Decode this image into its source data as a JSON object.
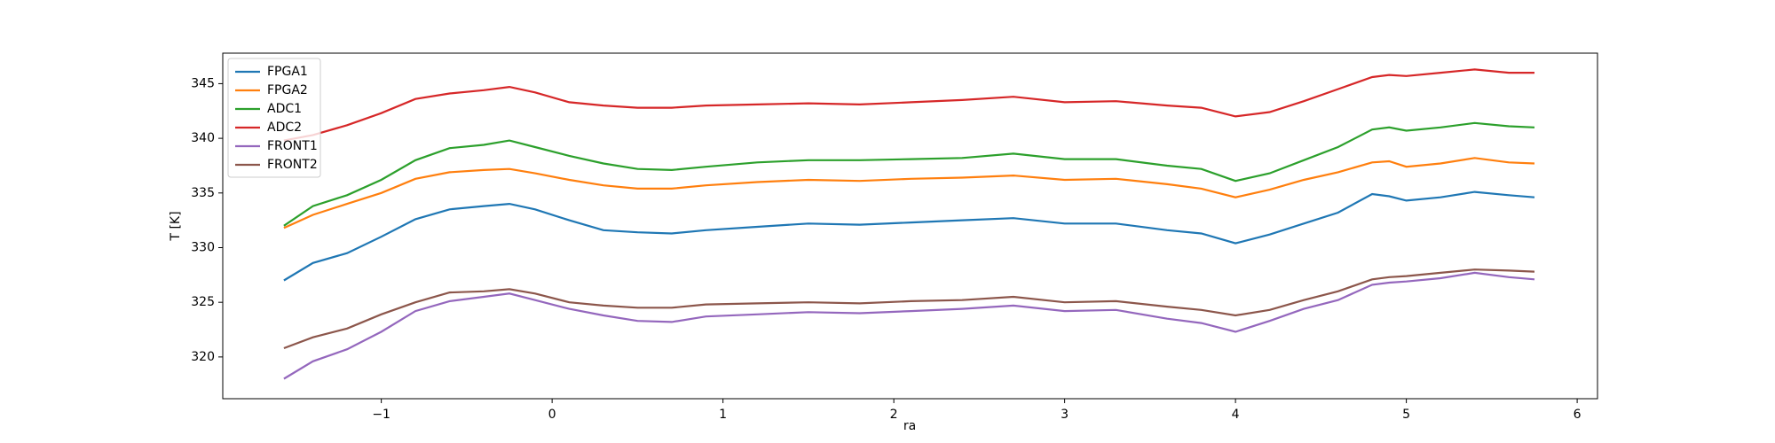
{
  "chart_data": {
    "type": "line",
    "xlabel": "ra",
    "ylabel": "T [K]",
    "x": [
      -1.57,
      -1.4,
      -1.2,
      -1.0,
      -0.8,
      -0.6,
      -0.4,
      -0.25,
      -0.1,
      0.1,
      0.3,
      0.5,
      0.7,
      0.9,
      1.2,
      1.5,
      1.8,
      2.1,
      2.4,
      2.7,
      3.0,
      3.3,
      3.6,
      3.8,
      4.0,
      4.2,
      4.4,
      4.6,
      4.8,
      4.9,
      5.0,
      5.2,
      5.4,
      5.6,
      5.75
    ],
    "series": [
      {
        "name": "FPGA1",
        "color": "#1f77b4",
        "values": [
          327.0,
          328.6,
          329.5,
          331.0,
          332.6,
          333.5,
          333.8,
          334.0,
          333.5,
          332.5,
          331.6,
          331.4,
          331.3,
          331.6,
          331.9,
          332.2,
          332.1,
          332.3,
          332.5,
          332.7,
          332.2,
          332.2,
          331.6,
          331.3,
          330.4,
          331.2,
          332.2,
          333.2,
          334.9,
          334.7,
          334.3,
          334.6,
          335.1,
          334.8,
          334.6
        ]
      },
      {
        "name": "FPGA2",
        "color": "#ff7f0e",
        "values": [
          331.8,
          333.0,
          334.0,
          335.0,
          336.3,
          336.9,
          337.1,
          337.2,
          336.8,
          336.2,
          335.7,
          335.4,
          335.4,
          335.7,
          336.0,
          336.2,
          336.1,
          336.3,
          336.4,
          336.6,
          336.2,
          336.3,
          335.8,
          335.4,
          334.6,
          335.3,
          336.2,
          336.9,
          337.8,
          337.9,
          337.4,
          337.7,
          338.2,
          337.8,
          337.7
        ]
      },
      {
        "name": "ADC1",
        "color": "#2ca02c",
        "values": [
          332.0,
          333.8,
          334.8,
          336.2,
          338.0,
          339.1,
          339.4,
          339.8,
          339.2,
          338.4,
          337.7,
          337.2,
          337.1,
          337.4,
          337.8,
          338.0,
          338.0,
          338.1,
          338.2,
          338.6,
          338.1,
          338.1,
          337.5,
          337.2,
          336.1,
          336.8,
          338.0,
          339.2,
          340.8,
          341.0,
          340.7,
          341.0,
          341.4,
          341.1,
          341.0
        ]
      },
      {
        "name": "ADC2",
        "color": "#d62728",
        "values": [
          339.8,
          340.3,
          341.2,
          342.3,
          343.6,
          344.1,
          344.4,
          344.7,
          344.2,
          343.3,
          343.0,
          342.8,
          342.8,
          343.0,
          343.1,
          343.2,
          343.1,
          343.3,
          343.5,
          343.8,
          343.3,
          343.4,
          343.0,
          342.8,
          342.0,
          342.4,
          343.4,
          344.5,
          345.6,
          345.8,
          345.7,
          346.0,
          346.3,
          346.0,
          346.0
        ]
      },
      {
        "name": "FRONT1",
        "color": "#9467bd",
        "values": [
          318.0,
          319.6,
          320.7,
          322.3,
          324.2,
          325.1,
          325.5,
          325.8,
          325.2,
          324.4,
          323.8,
          323.3,
          323.2,
          323.7,
          323.9,
          324.1,
          324.0,
          324.2,
          324.4,
          324.7,
          324.2,
          324.3,
          323.5,
          323.1,
          322.3,
          323.3,
          324.4,
          325.2,
          326.6,
          326.8,
          326.9,
          327.2,
          327.7,
          327.3,
          327.1
        ]
      },
      {
        "name": "FRONT2",
        "color": "#8c564b",
        "values": [
          320.8,
          321.8,
          322.6,
          323.9,
          325.0,
          325.9,
          326.0,
          326.2,
          325.8,
          325.0,
          324.7,
          324.5,
          324.5,
          324.8,
          324.9,
          325.0,
          324.9,
          325.1,
          325.2,
          325.5,
          325.0,
          325.1,
          324.6,
          324.3,
          323.8,
          324.3,
          325.2,
          326.0,
          327.1,
          327.3,
          327.4,
          327.7,
          328.0,
          327.9,
          327.8
        ]
      }
    ],
    "xlim": [
      -1.928,
      6.119
    ],
    "xticks": [
      {
        "value": -1,
        "label": "−1"
      },
      0,
      1,
      2,
      3,
      4,
      5,
      6
    ],
    "ylim": [
      316.18,
      347.79
    ],
    "yticks": [
      320,
      325,
      330,
      335,
      340,
      345
    ],
    "legend": "upper left"
  }
}
